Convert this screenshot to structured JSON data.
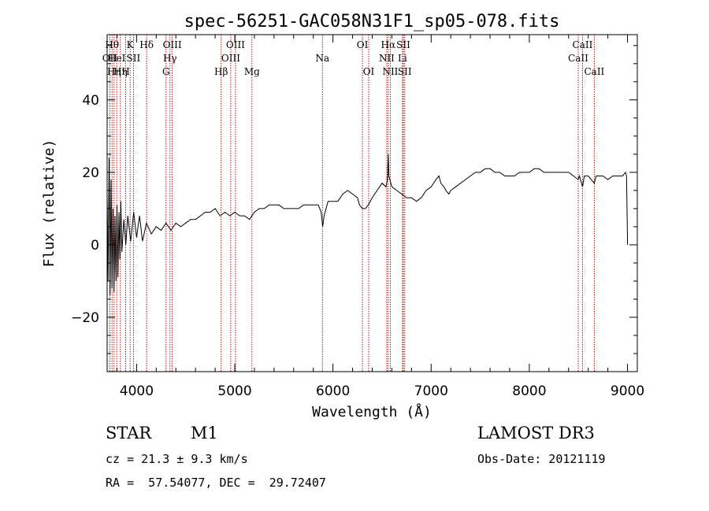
{
  "chart_data": {
    "type": "line",
    "title": "spec-56251-GAC058N31F1_sp05-078.fits",
    "xlabel": "Wavelength (Å)",
    "ylabel": "Flux (relative)",
    "xlim": [
      3700,
      9100
    ],
    "ylim": [
      -35,
      58
    ],
    "xticks": [
      4000,
      5000,
      6000,
      7000,
      8000,
      9000
    ],
    "yticks": [
      -20,
      0,
      20,
      40
    ],
    "series": [
      {
        "name": "flux",
        "points": [
          [
            3700,
            14
          ],
          [
            3710,
            -10
          ],
          [
            3720,
            24
          ],
          [
            3730,
            -14
          ],
          [
            3740,
            18
          ],
          [
            3750,
            -12
          ],
          [
            3760,
            10
          ],
          [
            3770,
            -13
          ],
          [
            3780,
            8
          ],
          [
            3790,
            -10
          ],
          [
            3800,
            11
          ],
          [
            3810,
            -9
          ],
          [
            3820,
            9
          ],
          [
            3830,
            -4
          ],
          [
            3840,
            12
          ],
          [
            3850,
            -2
          ],
          [
            3870,
            7
          ],
          [
            3890,
            0
          ],
          [
            3910,
            8
          ],
          [
            3940,
            1
          ],
          [
            3970,
            9
          ],
          [
            4000,
            2
          ],
          [
            4030,
            8
          ],
          [
            4060,
            1
          ],
          [
            4100,
            6
          ],
          [
            4150,
            3
          ],
          [
            4200,
            5
          ],
          [
            4250,
            4
          ],
          [
            4300,
            6
          ],
          [
            4350,
            4
          ],
          [
            4400,
            6
          ],
          [
            4450,
            5
          ],
          [
            4500,
            6
          ],
          [
            4550,
            7
          ],
          [
            4600,
            7
          ],
          [
            4650,
            8
          ],
          [
            4700,
            9
          ],
          [
            4750,
            9
          ],
          [
            4800,
            10
          ],
          [
            4850,
            8
          ],
          [
            4900,
            9
          ],
          [
            4950,
            8
          ],
          [
            5000,
            9
          ],
          [
            5050,
            8
          ],
          [
            5100,
            8
          ],
          [
            5150,
            7
          ],
          [
            5200,
            9
          ],
          [
            5250,
            10
          ],
          [
            5300,
            10
          ],
          [
            5350,
            11
          ],
          [
            5400,
            11
          ],
          [
            5450,
            11
          ],
          [
            5500,
            10
          ],
          [
            5550,
            10
          ],
          [
            5600,
            10
          ],
          [
            5650,
            10
          ],
          [
            5700,
            11
          ],
          [
            5750,
            11
          ],
          [
            5800,
            11
          ],
          [
            5850,
            11
          ],
          [
            5880,
            9
          ],
          [
            5895,
            5
          ],
          [
            5910,
            8
          ],
          [
            5950,
            12
          ],
          [
            6000,
            12
          ],
          [
            6050,
            12
          ],
          [
            6100,
            14
          ],
          [
            6150,
            15
          ],
          [
            6200,
            14
          ],
          [
            6250,
            13
          ],
          [
            6270,
            11
          ],
          [
            6300,
            10
          ],
          [
            6330,
            10
          ],
          [
            6360,
            11
          ],
          [
            6400,
            13
          ],
          [
            6450,
            15
          ],
          [
            6500,
            17
          ],
          [
            6540,
            16
          ],
          [
            6555,
            18
          ],
          [
            6563,
            25
          ],
          [
            6570,
            19
          ],
          [
            6580,
            18
          ],
          [
            6600,
            16
          ],
          [
            6650,
            15
          ],
          [
            6700,
            14
          ],
          [
            6750,
            13
          ],
          [
            6800,
            13
          ],
          [
            6850,
            12
          ],
          [
            6900,
            13
          ],
          [
            6950,
            15
          ],
          [
            7000,
            16
          ],
          [
            7050,
            18
          ],
          [
            7080,
            19
          ],
          [
            7100,
            17
          ],
          [
            7130,
            16
          ],
          [
            7150,
            15
          ],
          [
            7180,
            14
          ],
          [
            7200,
            15
          ],
          [
            7250,
            16
          ],
          [
            7300,
            17
          ],
          [
            7350,
            18
          ],
          [
            7400,
            19
          ],
          [
            7450,
            20
          ],
          [
            7500,
            20
          ],
          [
            7550,
            21
          ],
          [
            7600,
            21
          ],
          [
            7650,
            20
          ],
          [
            7700,
            20
          ],
          [
            7750,
            19
          ],
          [
            7800,
            19
          ],
          [
            7850,
            19
          ],
          [
            7900,
            20
          ],
          [
            7950,
            20
          ],
          [
            8000,
            20
          ],
          [
            8050,
            21
          ],
          [
            8100,
            21
          ],
          [
            8150,
            20
          ],
          [
            8200,
            20
          ],
          [
            8250,
            20
          ],
          [
            8300,
            20
          ],
          [
            8350,
            20
          ],
          [
            8400,
            20
          ],
          [
            8450,
            19
          ],
          [
            8498,
            18
          ],
          [
            8510,
            19
          ],
          [
            8542,
            16
          ],
          [
            8560,
            19
          ],
          [
            8600,
            19
          ],
          [
            8662,
            17
          ],
          [
            8680,
            19
          ],
          [
            8750,
            19
          ],
          [
            8800,
            18
          ],
          [
            8850,
            19
          ],
          [
            8900,
            19
          ],
          [
            8950,
            19
          ],
          [
            8980,
            20
          ],
          [
            8990,
            19
          ],
          [
            9000,
            2
          ],
          [
            9000,
            0
          ]
        ]
      }
    ],
    "lines": [
      {
        "wave": 3727,
        "label": "OII",
        "row": 1
      },
      {
        "wave": 3750,
        "label": "Hθ",
        "row": 0
      },
      {
        "wave": 3771,
        "label": "Hη",
        "row": 2
      },
      {
        "wave": 3798,
        "label": "HeI",
        "row": 1
      },
      {
        "wave": 3835,
        "label": "Hη",
        "row": 2
      },
      {
        "wave": 3889,
        "label": "H",
        "row": 2
      },
      {
        "wave": 3934,
        "label": "K",
        "row": 0
      },
      {
        "wave": 3968,
        "label": "SII",
        "row": 1
      },
      {
        "wave": 4102,
        "label": "Hδ",
        "row": 0
      },
      {
        "wave": 4300,
        "label": "G",
        "row": 2
      },
      {
        "wave": 4340,
        "label": "Hγ",
        "row": 1
      },
      {
        "wave": 4363,
        "label": "OIII",
        "row": 0
      },
      {
        "wave": 4861,
        "label": "Hβ",
        "row": 2
      },
      {
        "wave": 4959,
        "label": "OIII",
        "row": 1
      },
      {
        "wave": 5007,
        "label": "OIII",
        "row": 0
      },
      {
        "wave": 5175,
        "label": "Mg",
        "row": 2
      },
      {
        "wave": 5893,
        "label": "Na",
        "row": 1
      },
      {
        "wave": 6300,
        "label": "OI",
        "row": 0
      },
      {
        "wave": 6364,
        "label": "OI",
        "row": 2
      },
      {
        "wave": 6548,
        "label": "NII",
        "row": 1
      },
      {
        "wave": 6563,
        "label": "Hα",
        "row": 0
      },
      {
        "wave": 6584,
        "label": "NII",
        "row": 2
      },
      {
        "wave": 6708,
        "label": "Li",
        "row": 1
      },
      {
        "wave": 6717,
        "label": "SII",
        "row": 0
      },
      {
        "wave": 6731,
        "label": "SII",
        "row": 2
      },
      {
        "wave": 8498,
        "label": "CaII",
        "row": 1
      },
      {
        "wave": 8542,
        "label": "CaII",
        "row": 0
      },
      {
        "wave": 8662,
        "label": "CaII",
        "row": 2
      }
    ]
  },
  "info": {
    "object_class": "STAR",
    "subclass": "M1",
    "survey": "LAMOST DR3",
    "cz": "cz = 21.3 ± 9.3 km/s",
    "obs_date": "Obs-Date: 20121119",
    "coords": "RA =  57.54077, DEC =  29.72407"
  },
  "colors": {
    "line_marker": "#a00000",
    "spectrum": "#000000",
    "axis": "#000000"
  }
}
